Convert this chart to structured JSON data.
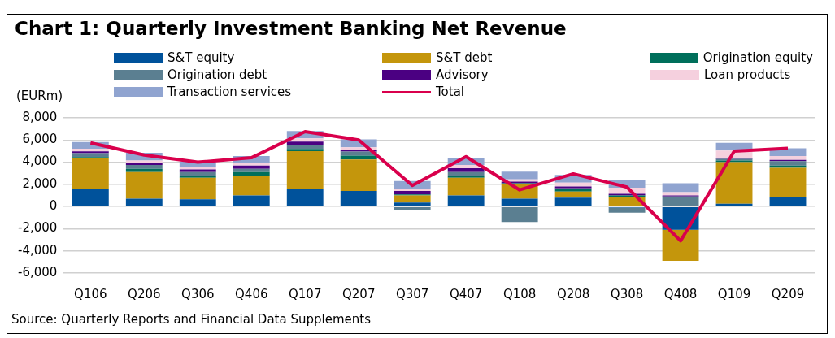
{
  "chart_data": {
    "type": "bar",
    "title": "Chart 1: Quarterly Investment Banking Net Revenue",
    "ylabel": "(EURm)",
    "categories": [
      "Q106",
      "Q206",
      "Q306",
      "Q406",
      "Q107",
      "Q207",
      "Q307",
      "Q407",
      "Q108",
      "Q208",
      "Q308",
      "Q408",
      "Q109",
      "Q209"
    ],
    "stacked": true,
    "grid": "y",
    "legend": "top",
    "ylim": [
      -6000,
      8000
    ],
    "yticks": [
      {
        "value": -6000,
        "label": "-6,000"
      },
      {
        "value": -4000,
        "label": "-4,000"
      },
      {
        "value": -2000,
        "label": "-2,000"
      },
      0,
      {
        "value": 2000,
        "label": "2,000"
      },
      {
        "value": 4000,
        "label": "4,000"
      },
      {
        "value": 6000,
        "label": "6,000"
      },
      {
        "value": 8000,
        "label": "8,000"
      }
    ],
    "series": [
      {
        "name": "S&T equity",
        "color": "#00529b",
        "values": [
          1550,
          700,
          650,
          1000,
          1600,
          1400,
          350,
          1000,
          700,
          800,
          -100,
          -2100,
          250,
          850
        ]
      },
      {
        "name": "S&T debt",
        "color": "#c4960c",
        "values": [
          2850,
          2400,
          1950,
          1800,
          3400,
          2850,
          650,
          1600,
          1350,
          550,
          850,
          -2800,
          3750,
          2650
        ]
      },
      {
        "name": "Origination equity",
        "color": "#006f5b",
        "values": [
          70,
          300,
          150,
          300,
          200,
          350,
          100,
          200,
          50,
          200,
          150,
          0,
          150,
          200
        ]
      },
      {
        "name": "Origination debt",
        "color": "#5b7f91",
        "values": [
          350,
          350,
          350,
          300,
          350,
          350,
          -350,
          300,
          -1400,
          100,
          -450,
          900,
          150,
          400
        ]
      },
      {
        "name": "Advisory",
        "color": "#4b0082",
        "values": [
          150,
          200,
          250,
          300,
          300,
          200,
          300,
          350,
          150,
          150,
          150,
          100,
          100,
          100
        ]
      },
      {
        "name": "Loan products",
        "color": "#f5d0de",
        "values": [
          250,
          200,
          200,
          200,
          300,
          200,
          200,
          300,
          200,
          350,
          550,
          300,
          650,
          350
        ]
      },
      {
        "name": "Transaction services",
        "color": "#90a4d0",
        "values": [
          600,
          700,
          500,
          650,
          650,
          700,
          700,
          650,
          700,
          700,
          700,
          800,
          700,
          700
        ]
      },
      {
        "name": "Total",
        "type": "line",
        "color": "#d9004c",
        "values": [
          5750,
          4650,
          4000,
          4400,
          6750,
          6000,
          1900,
          4500,
          1500,
          2950,
          1750,
          -3100,
          5000,
          5250
        ]
      }
    ],
    "annotations": [
      "Source: Quarterly Reports and Financial Data Supplements"
    ]
  }
}
